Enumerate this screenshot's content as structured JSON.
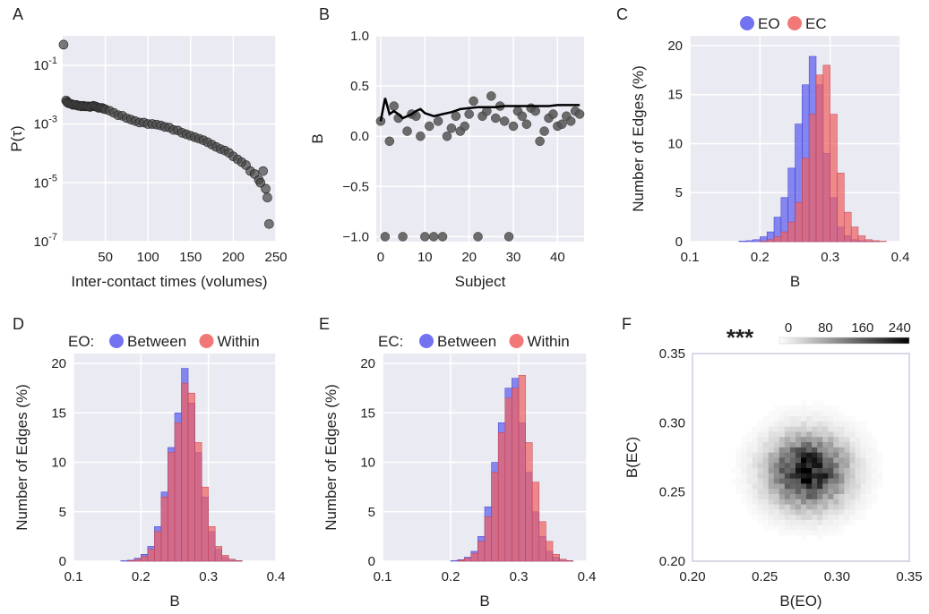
{
  "chart_data": [
    {
      "panel": "A",
      "type": "scatter",
      "xlabel": "Inter-contact times (volumes)",
      "ylabel": "P(τ)",
      "xlim": [
        0,
        250
      ],
      "ylim_log10": [
        -7,
        0
      ],
      "y_scale": "log",
      "x_ticks": [
        "50",
        "100",
        "150",
        "200",
        "250"
      ],
      "y_ticks": [
        "10^-7",
        "10^-5",
        "10^-3",
        "10^-1"
      ],
      "grid": true,
      "series": [
        {
          "color": "#444444",
          "x": [
            1,
            4,
            5,
            6,
            8,
            10,
            12,
            14,
            16,
            18,
            20,
            22,
            24,
            26,
            28,
            30,
            32,
            34,
            36,
            38,
            40,
            42,
            44,
            46,
            48,
            50,
            55,
            60,
            65,
            70,
            75,
            80,
            85,
            90,
            95,
            100,
            105,
            110,
            115,
            120,
            125,
            130,
            135,
            140,
            145,
            150,
            155,
            160,
            165,
            170,
            175,
            180,
            185,
            190,
            195,
            200,
            205,
            210,
            215,
            220,
            225,
            230,
            232,
            235,
            238,
            240,
            242
          ],
          "log10y": [
            -0.3,
            -2.2,
            -2.25,
            -2.28,
            -2.3,
            -2.32,
            -2.35,
            -2.35,
            -2.35,
            -2.38,
            -2.38,
            -2.4,
            -2.38,
            -2.4,
            -2.4,
            -2.4,
            -2.42,
            -2.4,
            -2.38,
            -2.4,
            -2.42,
            -2.45,
            -2.45,
            -2.45,
            -2.48,
            -2.5,
            -2.55,
            -2.62,
            -2.7,
            -2.72,
            -2.8,
            -2.85,
            -2.9,
            -2.95,
            -2.95,
            -3.0,
            -3.0,
            -3.02,
            -3.05,
            -3.1,
            -3.12,
            -3.2,
            -3.22,
            -3.3,
            -3.35,
            -3.4,
            -3.45,
            -3.5,
            -3.55,
            -3.62,
            -3.7,
            -3.78,
            -3.85,
            -3.9,
            -3.98,
            -4.1,
            -4.2,
            -4.3,
            -4.4,
            -4.6,
            -4.7,
            -4.9,
            -5.0,
            -4.6,
            -5.2,
            -5.5,
            -6.4
          ]
        }
      ]
    },
    {
      "panel": "B",
      "type": "scatter",
      "xlabel": "Subject",
      "ylabel": "B",
      "xlim": [
        -1,
        46
      ],
      "ylim": [
        -1.05,
        1.0
      ],
      "x_ticks": [
        "0",
        "10",
        "20",
        "30",
        "40"
      ],
      "y_ticks": [
        "−1.0",
        "−0.5",
        "0.0",
        "0.5",
        "1.0"
      ],
      "grid": true,
      "points": {
        "color": "#555555",
        "x": [
          0,
          1,
          2,
          3,
          4,
          5,
          6,
          7,
          8,
          9,
          10,
          11,
          12,
          13,
          14,
          15,
          16,
          17,
          18,
          19,
          20,
          21,
          22,
          23,
          24,
          25,
          26,
          27,
          28,
          29,
          30,
          31,
          32,
          33,
          34,
          35,
          36,
          37,
          38,
          39,
          40,
          41,
          42,
          43,
          44,
          45
        ],
        "y": [
          0.15,
          -1.0,
          -0.05,
          0.3,
          0.18,
          -1.0,
          0.05,
          0.22,
          0.2,
          0.0,
          -1.0,
          0.1,
          -1.0,
          0.15,
          -1.0,
          0.0,
          0.08,
          0.2,
          0.05,
          0.1,
          0.22,
          0.35,
          -1.0,
          0.2,
          0.25,
          0.4,
          0.18,
          0.3,
          0.15,
          -1.0,
          0.1,
          0.25,
          0.2,
          0.12,
          0.28,
          0.25,
          -0.05,
          0.05,
          0.18,
          0.22,
          0.1,
          0.12,
          0.2,
          0.15,
          0.25,
          0.22
        ]
      },
      "line": {
        "color": "#000000",
        "x": [
          0,
          1,
          2,
          3,
          4,
          5,
          6,
          7,
          8,
          9,
          10,
          12,
          14,
          16,
          18,
          20,
          22,
          24,
          26,
          28,
          30,
          32,
          34,
          36,
          38,
          40,
          42,
          44,
          45
        ],
        "y": [
          0.15,
          0.38,
          0.22,
          0.25,
          0.22,
          0.18,
          0.2,
          0.22,
          0.25,
          0.27,
          0.23,
          0.2,
          0.22,
          0.24,
          0.27,
          0.28,
          0.29,
          0.29,
          0.29,
          0.3,
          0.3,
          0.3,
          0.3,
          0.3,
          0.3,
          0.31,
          0.31,
          0.31,
          0.31
        ]
      }
    },
    {
      "panel": "C",
      "type": "bar",
      "xlabel": "B",
      "ylabel": "Number of Edges (%)",
      "xlim": [
        0.1,
        0.4
      ],
      "ylim": [
        0,
        21
      ],
      "x_ticks": [
        "0.1",
        "0.2",
        "0.3",
        "0.4"
      ],
      "y_ticks": [
        "0",
        "5",
        "10",
        "15",
        "20"
      ],
      "grid": true,
      "legend_placement": "top",
      "bin_width": 0.01,
      "series": [
        {
          "name": "EO",
          "color": "#5a5af0",
          "bin_starts": [
            0.17,
            0.18,
            0.19,
            0.2,
            0.21,
            0.22,
            0.23,
            0.24,
            0.25,
            0.26,
            0.27,
            0.28,
            0.29,
            0.3,
            0.31,
            0.32,
            0.33,
            0.34,
            0.35,
            0.36
          ],
          "values": [
            0.05,
            0.1,
            0.2,
            0.5,
            1.0,
            2.5,
            4.5,
            7.5,
            12,
            16,
            18.9,
            16,
            9,
            4.5,
            1.5,
            0.6,
            0.2,
            0.1,
            0.05,
            0.02
          ]
        },
        {
          "name": "EC",
          "color": "#f06060",
          "bin_starts": [
            0.2,
            0.21,
            0.22,
            0.23,
            0.24,
            0.25,
            0.26,
            0.27,
            0.28,
            0.29,
            0.3,
            0.31,
            0.32,
            0.33,
            0.34,
            0.35,
            0.36,
            0.37
          ],
          "values": [
            0.05,
            0.2,
            0.5,
            1.0,
            2.0,
            4.0,
            8.5,
            13,
            17,
            18,
            13,
            7,
            3,
            1.5,
            0.6,
            0.2,
            0.1,
            0.05
          ]
        }
      ]
    },
    {
      "panel": "D",
      "type": "bar",
      "xlabel": "B",
      "ylabel": "Number of Edges (%)",
      "xlim": [
        0.1,
        0.4
      ],
      "ylim": [
        0,
        21
      ],
      "x_ticks": [
        "0.1",
        "0.2",
        "0.3",
        "0.4"
      ],
      "y_ticks": [
        "0",
        "5",
        "10",
        "15",
        "20"
      ],
      "grid": true,
      "legend_placement": "top",
      "legend_title": "EO:",
      "bin_width": 0.01,
      "series": [
        {
          "name": "Between",
          "color": "#5a5af0",
          "bin_starts": [
            0.17,
            0.18,
            0.19,
            0.2,
            0.21,
            0.22,
            0.23,
            0.24,
            0.25,
            0.26,
            0.27,
            0.28,
            0.29,
            0.3,
            0.31,
            0.32,
            0.33,
            0.34
          ],
          "values": [
            0.05,
            0.1,
            0.3,
            0.7,
            1.5,
            3.5,
            7,
            11.5,
            15,
            19.5,
            16,
            11,
            6.5,
            3,
            1.2,
            0.4,
            0.1,
            0.05
          ]
        },
        {
          "name": "Within",
          "color": "#f06060",
          "bin_starts": [
            0.18,
            0.19,
            0.2,
            0.21,
            0.22,
            0.23,
            0.24,
            0.25,
            0.26,
            0.27,
            0.28,
            0.29,
            0.3,
            0.31,
            0.32,
            0.33,
            0.34
          ],
          "values": [
            0.05,
            0.2,
            0.5,
            1.2,
            3,
            6.5,
            11,
            14,
            18,
            17,
            12,
            7.5,
            3.5,
            1.5,
            0.6,
            0.2,
            0.05
          ]
        }
      ]
    },
    {
      "panel": "E",
      "type": "bar",
      "xlabel": "B",
      "ylabel": "Number of Edges (%)",
      "xlim": [
        0.1,
        0.4
      ],
      "ylim": [
        0,
        21
      ],
      "x_ticks": [
        "0.1",
        "0.2",
        "0.3",
        "0.4"
      ],
      "y_ticks": [
        "0",
        "5",
        "10",
        "15",
        "20"
      ],
      "grid": true,
      "legend_placement": "top",
      "legend_title": "EC:",
      "bin_width": 0.01,
      "series": [
        {
          "name": "Between",
          "color": "#5a5af0",
          "bin_starts": [
            0.2,
            0.21,
            0.22,
            0.23,
            0.24,
            0.25,
            0.26,
            0.27,
            0.28,
            0.29,
            0.3,
            0.31,
            0.32,
            0.33,
            0.34,
            0.35,
            0.36,
            0.37
          ],
          "values": [
            0.05,
            0.15,
            0.4,
            1,
            2.5,
            5.5,
            10,
            14,
            17.5,
            18.5,
            14,
            9,
            5,
            2.5,
            1,
            0.4,
            0.1,
            0.05
          ]
        },
        {
          "name": "Within",
          "color": "#f06060",
          "bin_starts": [
            0.21,
            0.22,
            0.23,
            0.24,
            0.25,
            0.26,
            0.27,
            0.28,
            0.29,
            0.3,
            0.31,
            0.32,
            0.33,
            0.34,
            0.35,
            0.36,
            0.37
          ],
          "values": [
            0.1,
            0.3,
            0.8,
            2,
            4.5,
            9,
            13,
            16.5,
            17.5,
            18.8,
            12,
            8,
            4,
            2,
            0.7,
            0.2,
            0.05
          ]
        }
      ]
    },
    {
      "panel": "F",
      "type": "heatmap",
      "xlabel": "B(EO)",
      "ylabel": "B(EC)",
      "xlim": [
        0.2,
        0.35
      ],
      "ylim": [
        0.2,
        0.35
      ],
      "x_ticks": [
        "0.20",
        "0.25",
        "0.30",
        "0.35"
      ],
      "y_ticks": [
        "0.20",
        "0.25",
        "0.30",
        "0.35"
      ],
      "annotation": "***",
      "colorbar_ticks": [
        "0",
        "80",
        "160",
        "240"
      ],
      "colorbar_range": [
        0,
        280
      ],
      "center": [
        0.28,
        0.265
      ],
      "spread": [
        0.018,
        0.017
      ],
      "peak_count": 260
    }
  ],
  "panel_letters": [
    "A",
    "B",
    "C",
    "D",
    "E",
    "F"
  ]
}
